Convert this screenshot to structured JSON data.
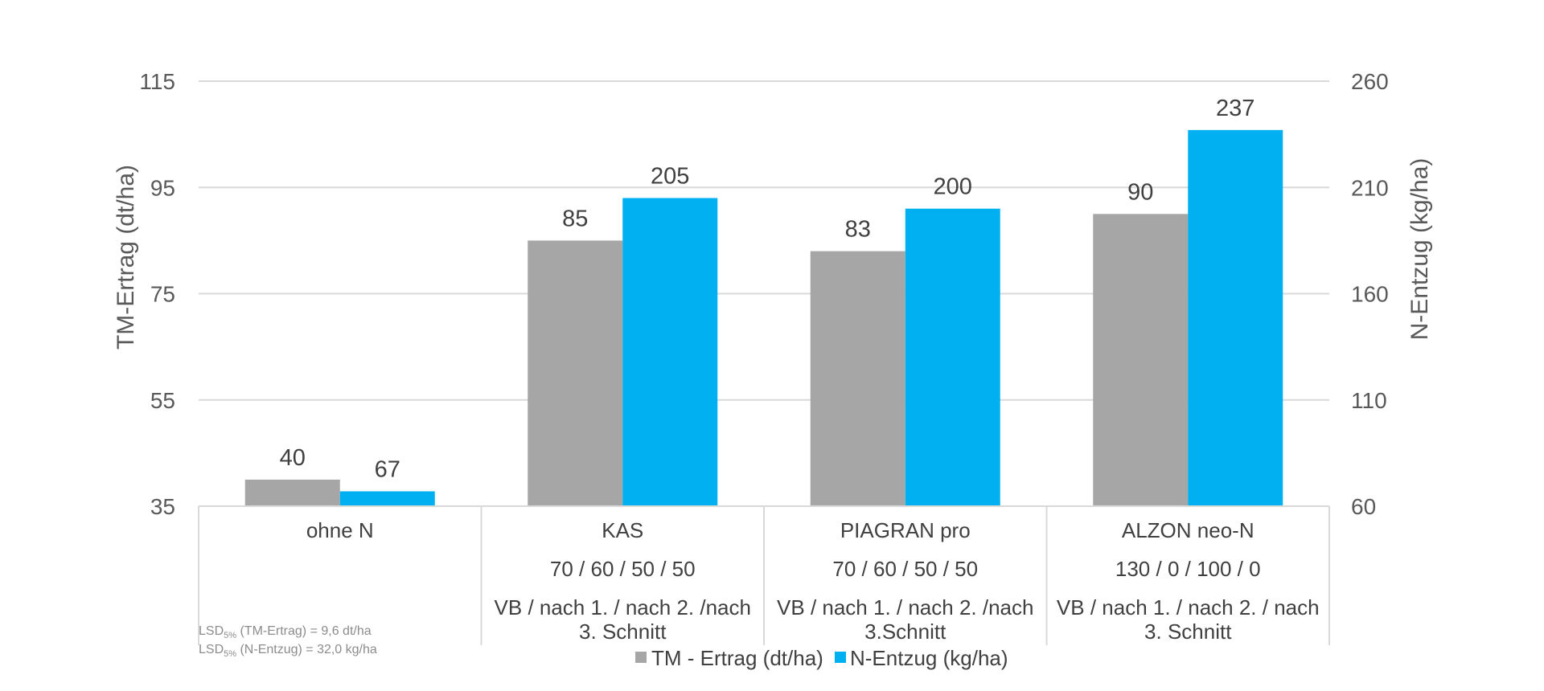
{
  "chart_data": {
    "type": "bar",
    "categories": [
      "ohne N",
      "KAS",
      "PIAGRAN pro",
      "ALZON neo-N"
    ],
    "category_rates": [
      "",
      "70 / 60 / 50 / 50",
      "70 / 60 / 50 / 50",
      "130 / 0 / 100 / 0"
    ],
    "category_timing": [
      [
        "",
        ""
      ],
      [
        "VB / nach 1. / nach 2. /nach",
        "3. Schnitt"
      ],
      [
        "VB / nach 1. / nach 2. /nach",
        "3.Schnitt"
      ],
      [
        "VB / nach 1. / nach 2. /  nach",
        "3. Schnitt"
      ]
    ],
    "series": [
      {
        "name": "TM - Ertrag (dt/ha)",
        "axis": "left",
        "color": "#a6a6a6",
        "values": [
          40,
          85,
          83,
          90
        ]
      },
      {
        "name": "N-Entzug (kg/ha)",
        "axis": "right",
        "color": "#00b0f0",
        "values": [
          67,
          205,
          200,
          237
        ]
      }
    ],
    "ylabel": "TM-Ertrag (dt/ha)",
    "ylabel_right": "N-Entzug (kg/ha)",
    "ylim": [
      35,
      115
    ],
    "ylim_right": [
      60,
      260
    ],
    "yticks": [
      35,
      55,
      75,
      95,
      115
    ],
    "yticks_right": [
      60,
      110,
      160,
      210,
      260
    ],
    "grid": true,
    "legend_position": "bottom",
    "notes": [
      {
        "prefix": "LSD",
        "sub": "5%",
        "text": " (TM-Ertrag) = 9,6 dt/ha"
      },
      {
        "prefix": "LSD",
        "sub": "5%",
        "text": " (N-Entzug) = 32,0 kg/ha"
      }
    ]
  }
}
